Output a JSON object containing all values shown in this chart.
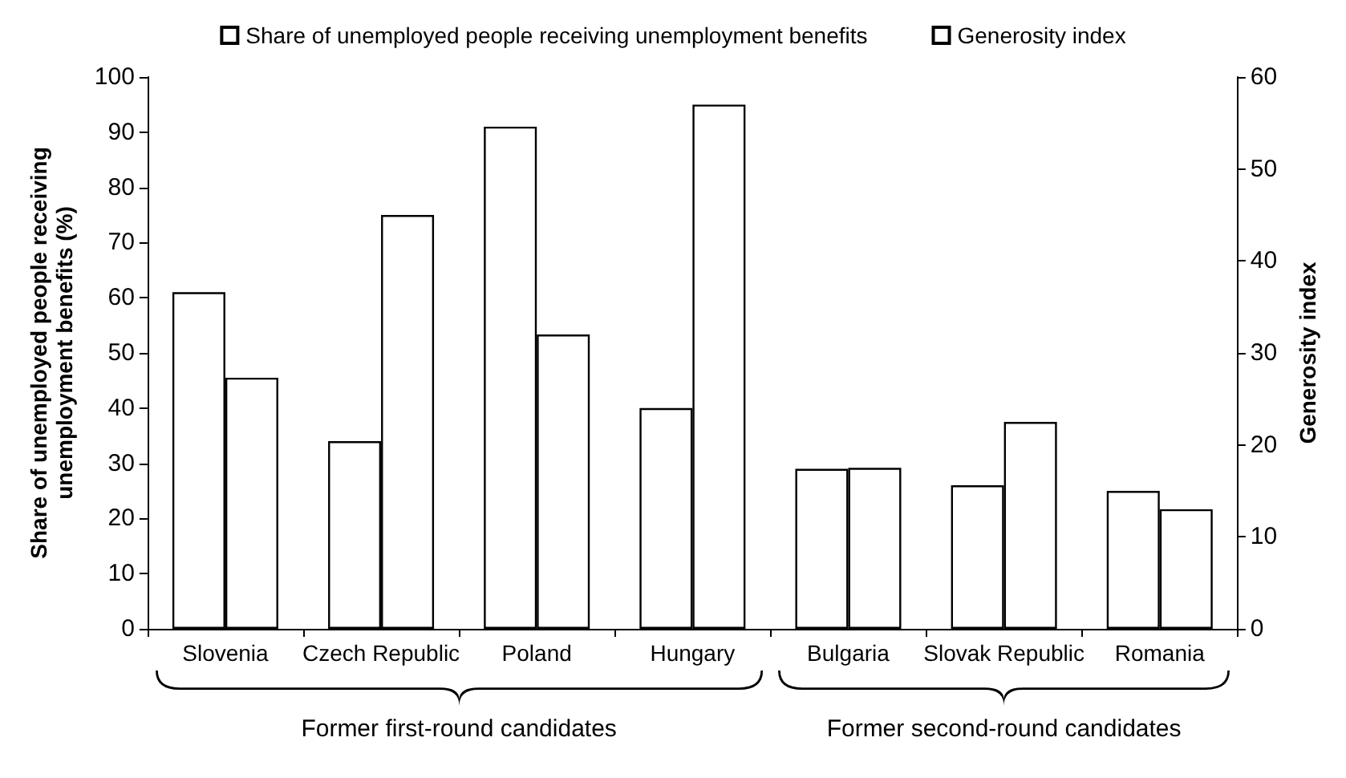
{
  "chart_data": {
    "type": "bar",
    "categories": [
      "Slovenia",
      "Czech Republic",
      "Poland",
      "Hungary",
      "Bulgaria",
      "Slovak Republic",
      "Romania"
    ],
    "series": [
      {
        "name": "Share of unemployed people receiving unemployment benefits",
        "color": "#ffffff",
        "values": [
          61,
          34,
          91,
          40,
          29,
          26,
          25
        ]
      },
      {
        "name": "Generosity index",
        "color": "#ffffff",
        "axis": "y2",
        "values": [
          27.3,
          45,
          32,
          57,
          17.5,
          22.5,
          13
        ]
      }
    ],
    "ylabel": "Share of unemployed people receiving\nunemployment benefits (%)",
    "y2label": "Generosity index",
    "ylim": [
      0,
      100
    ],
    "yticks": [
      0,
      10,
      20,
      30,
      40,
      50,
      60,
      70,
      80,
      90,
      100
    ],
    "y2lim": [
      0,
      60
    ],
    "y2ticks": [
      0,
      10,
      20,
      30,
      40,
      50,
      60
    ],
    "legend": "top",
    "grid": false,
    "annotations": [
      "Former first-round candidates",
      "Former second-round candidates"
    ]
  }
}
